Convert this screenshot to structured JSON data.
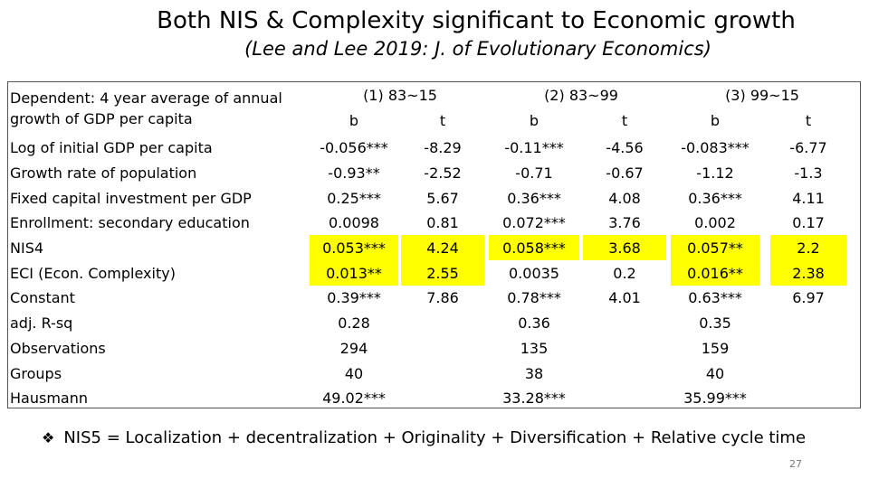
{
  "slide": {
    "title": "Both NIS & Complexity significant to Economic growth",
    "subtitle": "(Lee and Lee 2019: J. of Evolutionary Economics)",
    "page_number": "27"
  },
  "table": {
    "header_label_line1": "Dependent: 4 year average of annual",
    "header_label_line2": "growth of GDP per capita",
    "groups": [
      "(1) 83~15",
      "(2) 83~99",
      "(3) 99~15"
    ],
    "subheaders": [
      "b",
      "t",
      "b",
      "t",
      "b",
      "t"
    ],
    "rows": [
      {
        "label": "Log of initial GDP per capita",
        "cells": [
          "-0.056***",
          "-8.29",
          "-0.11***",
          "-4.56",
          "-0.083***",
          "-6.77"
        ],
        "highlight": false
      },
      {
        "label": "Growth rate of population",
        "cells": [
          "-0.93**",
          "-2.52",
          "-0.71",
          "-0.67",
          "-1.12",
          "-1.3"
        ],
        "highlight": false
      },
      {
        "label": "Fixed capital investment per GDP",
        "cells": [
          "0.25***",
          "5.67",
          "0.36***",
          "4.08",
          "0.36***",
          "4.11"
        ],
        "highlight": false
      },
      {
        "label": "Enrollment: secondary education",
        "cells": [
          "0.0098",
          "0.81",
          "0.072***",
          "3.76",
          "0.002",
          "0.17"
        ],
        "highlight": false
      },
      {
        "label": "NIS4",
        "cells": [
          "0.053***",
          "4.24",
          "0.058***",
          "3.68",
          "0.057**",
          "2.2"
        ],
        "highlight": true
      },
      {
        "label": "ECI (Econ. Complexity)",
        "cells": [
          "0.013**",
          "2.55",
          "0.0035",
          "0.2",
          "0.016**",
          "2.38"
        ],
        "highlight": true,
        "highlight_cols": [
          0,
          1,
          4,
          5
        ]
      },
      {
        "label": "Constant",
        "cells": [
          "0.39***",
          "7.86",
          "0.78***",
          "4.01",
          "0.63***",
          "6.97"
        ],
        "highlight": false
      },
      {
        "label": "adj. R-sq",
        "cells": [
          "0.28",
          "",
          "0.36",
          "",
          "0.35",
          ""
        ],
        "highlight": false
      },
      {
        "label": "Observations",
        "cells": [
          "294",
          "",
          "135",
          "",
          "159",
          ""
        ],
        "highlight": false
      },
      {
        "label": "Groups",
        "cells": [
          "40",
          "",
          "38",
          "",
          "40",
          ""
        ],
        "highlight": false
      },
      {
        "label": "Hausmann",
        "cells": [
          "49.02***",
          "",
          "33.28***",
          "",
          "35.99***",
          ""
        ],
        "highlight": false
      }
    ]
  },
  "note": {
    "text": "NIS5 = Localization + decentralization + Originality + Diversification + Relative cycle time"
  }
}
